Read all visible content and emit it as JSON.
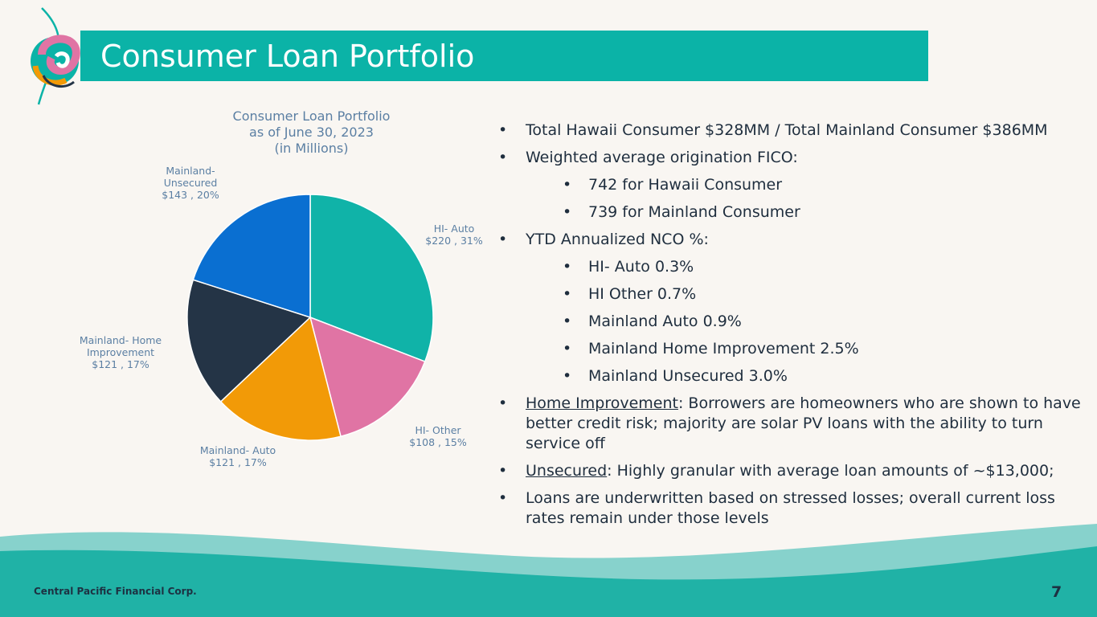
{
  "header": {
    "title": "Consumer Loan Portfolio"
  },
  "chart_data": {
    "type": "pie",
    "title_lines": [
      "Consumer Loan Portfolio",
      "as of June 30, 2023",
      "(in Millions)"
    ],
    "slices": [
      {
        "category": "HI- Auto",
        "value": 220,
        "percent": "31%",
        "color": "#10b3a8",
        "label_lines": [
          "HI- Auto",
          "$220 , 31%"
        ]
      },
      {
        "category": "HI- Other",
        "value": 108,
        "percent": "15%",
        "color": "#e074a4",
        "label_lines": [
          "HI- Other",
          "$108 , 15%"
        ]
      },
      {
        "category": "Mainland- Auto",
        "value": 121,
        "percent": "17%",
        "color": "#f29a07",
        "label_lines": [
          "Mainland- Auto",
          "$121 , 17%"
        ]
      },
      {
        "category": "Mainland- Home Improvement",
        "value": 121,
        "percent": "17%",
        "color": "#243446",
        "label_lines": [
          "Mainland- Home",
          "Improvement",
          "$121 , 17%"
        ]
      },
      {
        "category": "Mainland- Unsecured",
        "value": 143,
        "percent": "20%",
        "color": "#0a6fd1",
        "label_lines": [
          "Mainland-",
          "Unsecured",
          "$143 , 20%"
        ]
      }
    ]
  },
  "bullets": {
    "b1": "Total Hawaii Consumer $328MM / Total Mainland Consumer $386MM",
    "b2": "Weighted average origination FICO:",
    "b2a": "742 for Hawaii Consumer",
    "b2b": "739 for Mainland Consumer",
    "b3": "YTD Annualized NCO %:",
    "b3a": "HI- Auto 0.3%",
    "b3b": "HI Other 0.7%",
    "b3c": "Mainland Auto 0.9%",
    "b3d": "Mainland Home Improvement 2.5%",
    "b3e": "Mainland Unsecured 3.0%",
    "b4_head": "Home Improvement",
    "b4_body": ": Borrowers are homeowners who are shown to have better credit risk; majority are solar PV loans with the ability to turn service off",
    "b5_head": "Unsecured",
    "b5_body": ": Highly granular with average loan amounts of ~$13,000;",
    "b6": "Loans are underwritten based on stressed losses; overall current loss rates remain under those levels",
    "bullet_char": "•"
  },
  "footer": {
    "company": "Central Pacific Financial Corp.",
    "page_number": "7"
  },
  "icons": {
    "logo": "swirl-logo-icon"
  }
}
